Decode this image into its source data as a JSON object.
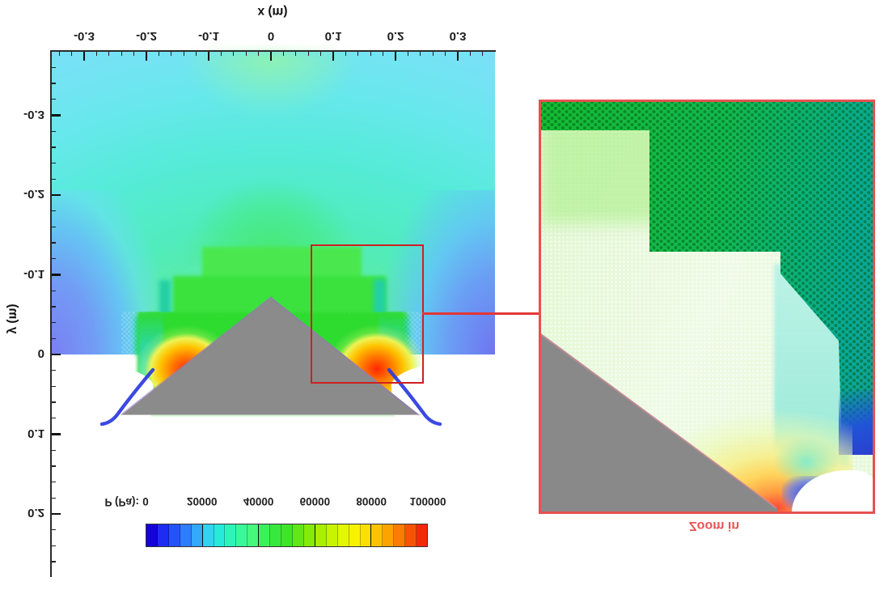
{
  "figure": {
    "note": "CFD pressure-contour figure shown vertically mirrored (all text appears upside down)",
    "background": "#ffffff"
  },
  "main_plot": {
    "xlabel": "x (m)",
    "ylabel": "y (m)",
    "x_ticks": [
      "-0.3",
      "-0.2",
      "-0.1",
      "0",
      "0.1",
      "0.2",
      "0.3"
    ],
    "y_ticks": [
      "-0.3",
      "-0.2",
      "-0.1",
      "0",
      "0.1",
      "0.2"
    ],
    "wedge_color": "#8b8b8b"
  },
  "colorbar": {
    "label": "P (Pa):",
    "tick_labels": [
      "0",
      "20000",
      "40000",
      "60000",
      "80000",
      "100000"
    ],
    "cell_colors": [
      "#1502d8",
      "#1c2cf2",
      "#2453fb",
      "#2d7dff",
      "#34a9fa",
      "#2fd4ef",
      "#26ebdb",
      "#2df5b9",
      "#3af89a",
      "#46f87c",
      "#3cf05a",
      "#36e93c",
      "#3ee426",
      "#60e714",
      "#84ea08",
      "#a8ef03",
      "#c7f400",
      "#e3f800",
      "#f8f200",
      "#fcdf00",
      "#fdc300",
      "#fca300",
      "#fa7c00",
      "#f65307",
      "#f02a0b"
    ]
  },
  "inset": {
    "caption": "Zoom in",
    "border_color": "#e85050"
  },
  "zoom_link": {
    "box_color": "#cf2020"
  },
  "chart_data": {
    "type": "heatmap",
    "title": "",
    "xlabel": "x (m)",
    "ylabel": "y (m)",
    "x_ticks": [
      -0.3,
      -0.2,
      -0.1,
      0,
      0.1,
      0.2,
      0.3
    ],
    "y_ticks": [
      -0.3,
      -0.2,
      -0.1,
      0,
      0.1,
      0.2
    ],
    "x_range": [
      -0.355,
      0.36
    ],
    "y_range_displayed_top_to_bottom": [
      -0.38,
      0.28
    ],
    "grid": false,
    "colorbar": {
      "label": "P (Pa)",
      "ticks": [
        0,
        20000,
        40000,
        60000,
        80000,
        100000
      ],
      "range": [
        0,
        100000
      ],
      "scale_colors_low_to_high": [
        "#1502d8",
        "#26ebdb",
        "#36e93c",
        "#f8f200",
        "#f02a0b"
      ]
    },
    "features": [
      "unstructured-mesh pressure field around a symmetric gray wedge (water-entry / slamming style), figure displayed vertically mirrored",
      "wedge apex at x=0, y~-0.07; base corners at approximately (-0.24, 0.075) and (0.24, 0.075) in displayed coordinates",
      "far field low pressure ~20000-30000 Pa (cyan) with ~0-10000 Pa (blue) bands along left and right edges near y=0",
      "stepped bright-green mesh-refinement zones ~40000-60000 Pa surrounding the wedge",
      "pressure peaks ~90000-100000 Pa (orange-red) on both wedge flanks near the spray roots at approximately (±0.13, 0.02)",
      "thin near-zero-pressure (dark blue) spray jets running along both wedge sides past the base corners",
      "red rectangle over right spray-root region (x ~0.06-0.24, y ~-0.14-0.035) linked by a red line to the magnified inset",
      "inset shows mesh detail: coarse dark-green honeycomb cells (top right), fine light-green refined mesh, gray wedge surface, rainbow expansion fan and blue jet at the spray root, captioned 'Zoom in'"
    ]
  }
}
